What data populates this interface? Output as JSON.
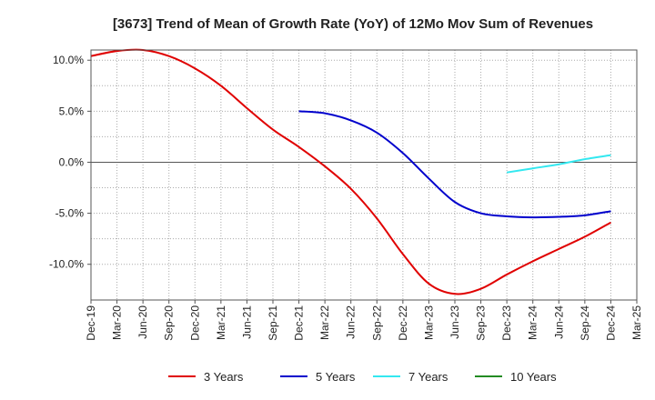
{
  "chart_data": {
    "type": "line",
    "title": "[3673]  Trend of Mean of Growth Rate (YoY) of 12Mo Mov Sum of Revenues",
    "xlabel": "",
    "ylabel": "",
    "ylim": [
      -13.5,
      11.0
    ],
    "y_ticks": [
      10,
      5,
      0,
      -5,
      -10
    ],
    "y_tick_labels": [
      "10.0%",
      "5.0%",
      "0.0%",
      "-5.0%",
      "-10.0%"
    ],
    "x_tick_labels": [
      "Dec-19",
      "Mar-20",
      "Jun-20",
      "Sep-20",
      "Dec-20",
      "Mar-21",
      "Jun-21",
      "Sep-21",
      "Dec-21",
      "Mar-22",
      "Jun-22",
      "Sep-22",
      "Dec-22",
      "Mar-23",
      "Jun-23",
      "Sep-23",
      "Dec-23",
      "Mar-24",
      "Jun-24",
      "Sep-24",
      "Dec-24",
      "Mar-25"
    ],
    "grid": true,
    "legend_position": "bottom",
    "series": [
      {
        "name": "3 Years",
        "color": "#e00000",
        "x": [
          0,
          1,
          2,
          3,
          4,
          5,
          6,
          7,
          8,
          9,
          10,
          11,
          12,
          13,
          14,
          15,
          16,
          17,
          18,
          19,
          20
        ],
        "values": [
          10.4,
          10.9,
          11.0,
          10.4,
          9.2,
          7.5,
          5.3,
          3.2,
          1.5,
          -0.4,
          -2.6,
          -5.5,
          -9.0,
          -11.9,
          -12.9,
          -12.4,
          -11.0,
          -9.7,
          -8.5,
          -7.3,
          -5.9
        ]
      },
      {
        "name": "5 Years",
        "color": "#0000cc",
        "x": [
          8,
          9,
          10,
          11,
          12,
          13,
          14,
          15,
          16,
          17,
          18,
          19,
          20
        ],
        "values": [
          5.0,
          4.8,
          4.1,
          2.9,
          0.9,
          -1.6,
          -3.9,
          -5.0,
          -5.3,
          -5.4,
          -5.35,
          -5.2,
          -4.8
        ]
      },
      {
        "name": "7 Years",
        "color": "#33e8f0",
        "x": [
          16,
          17,
          18,
          19,
          20
        ],
        "values": [
          -1.0,
          -0.6,
          -0.2,
          0.3,
          0.7
        ]
      },
      {
        "name": "10 Years",
        "color": "#228b22",
        "x": [],
        "values": []
      }
    ]
  }
}
